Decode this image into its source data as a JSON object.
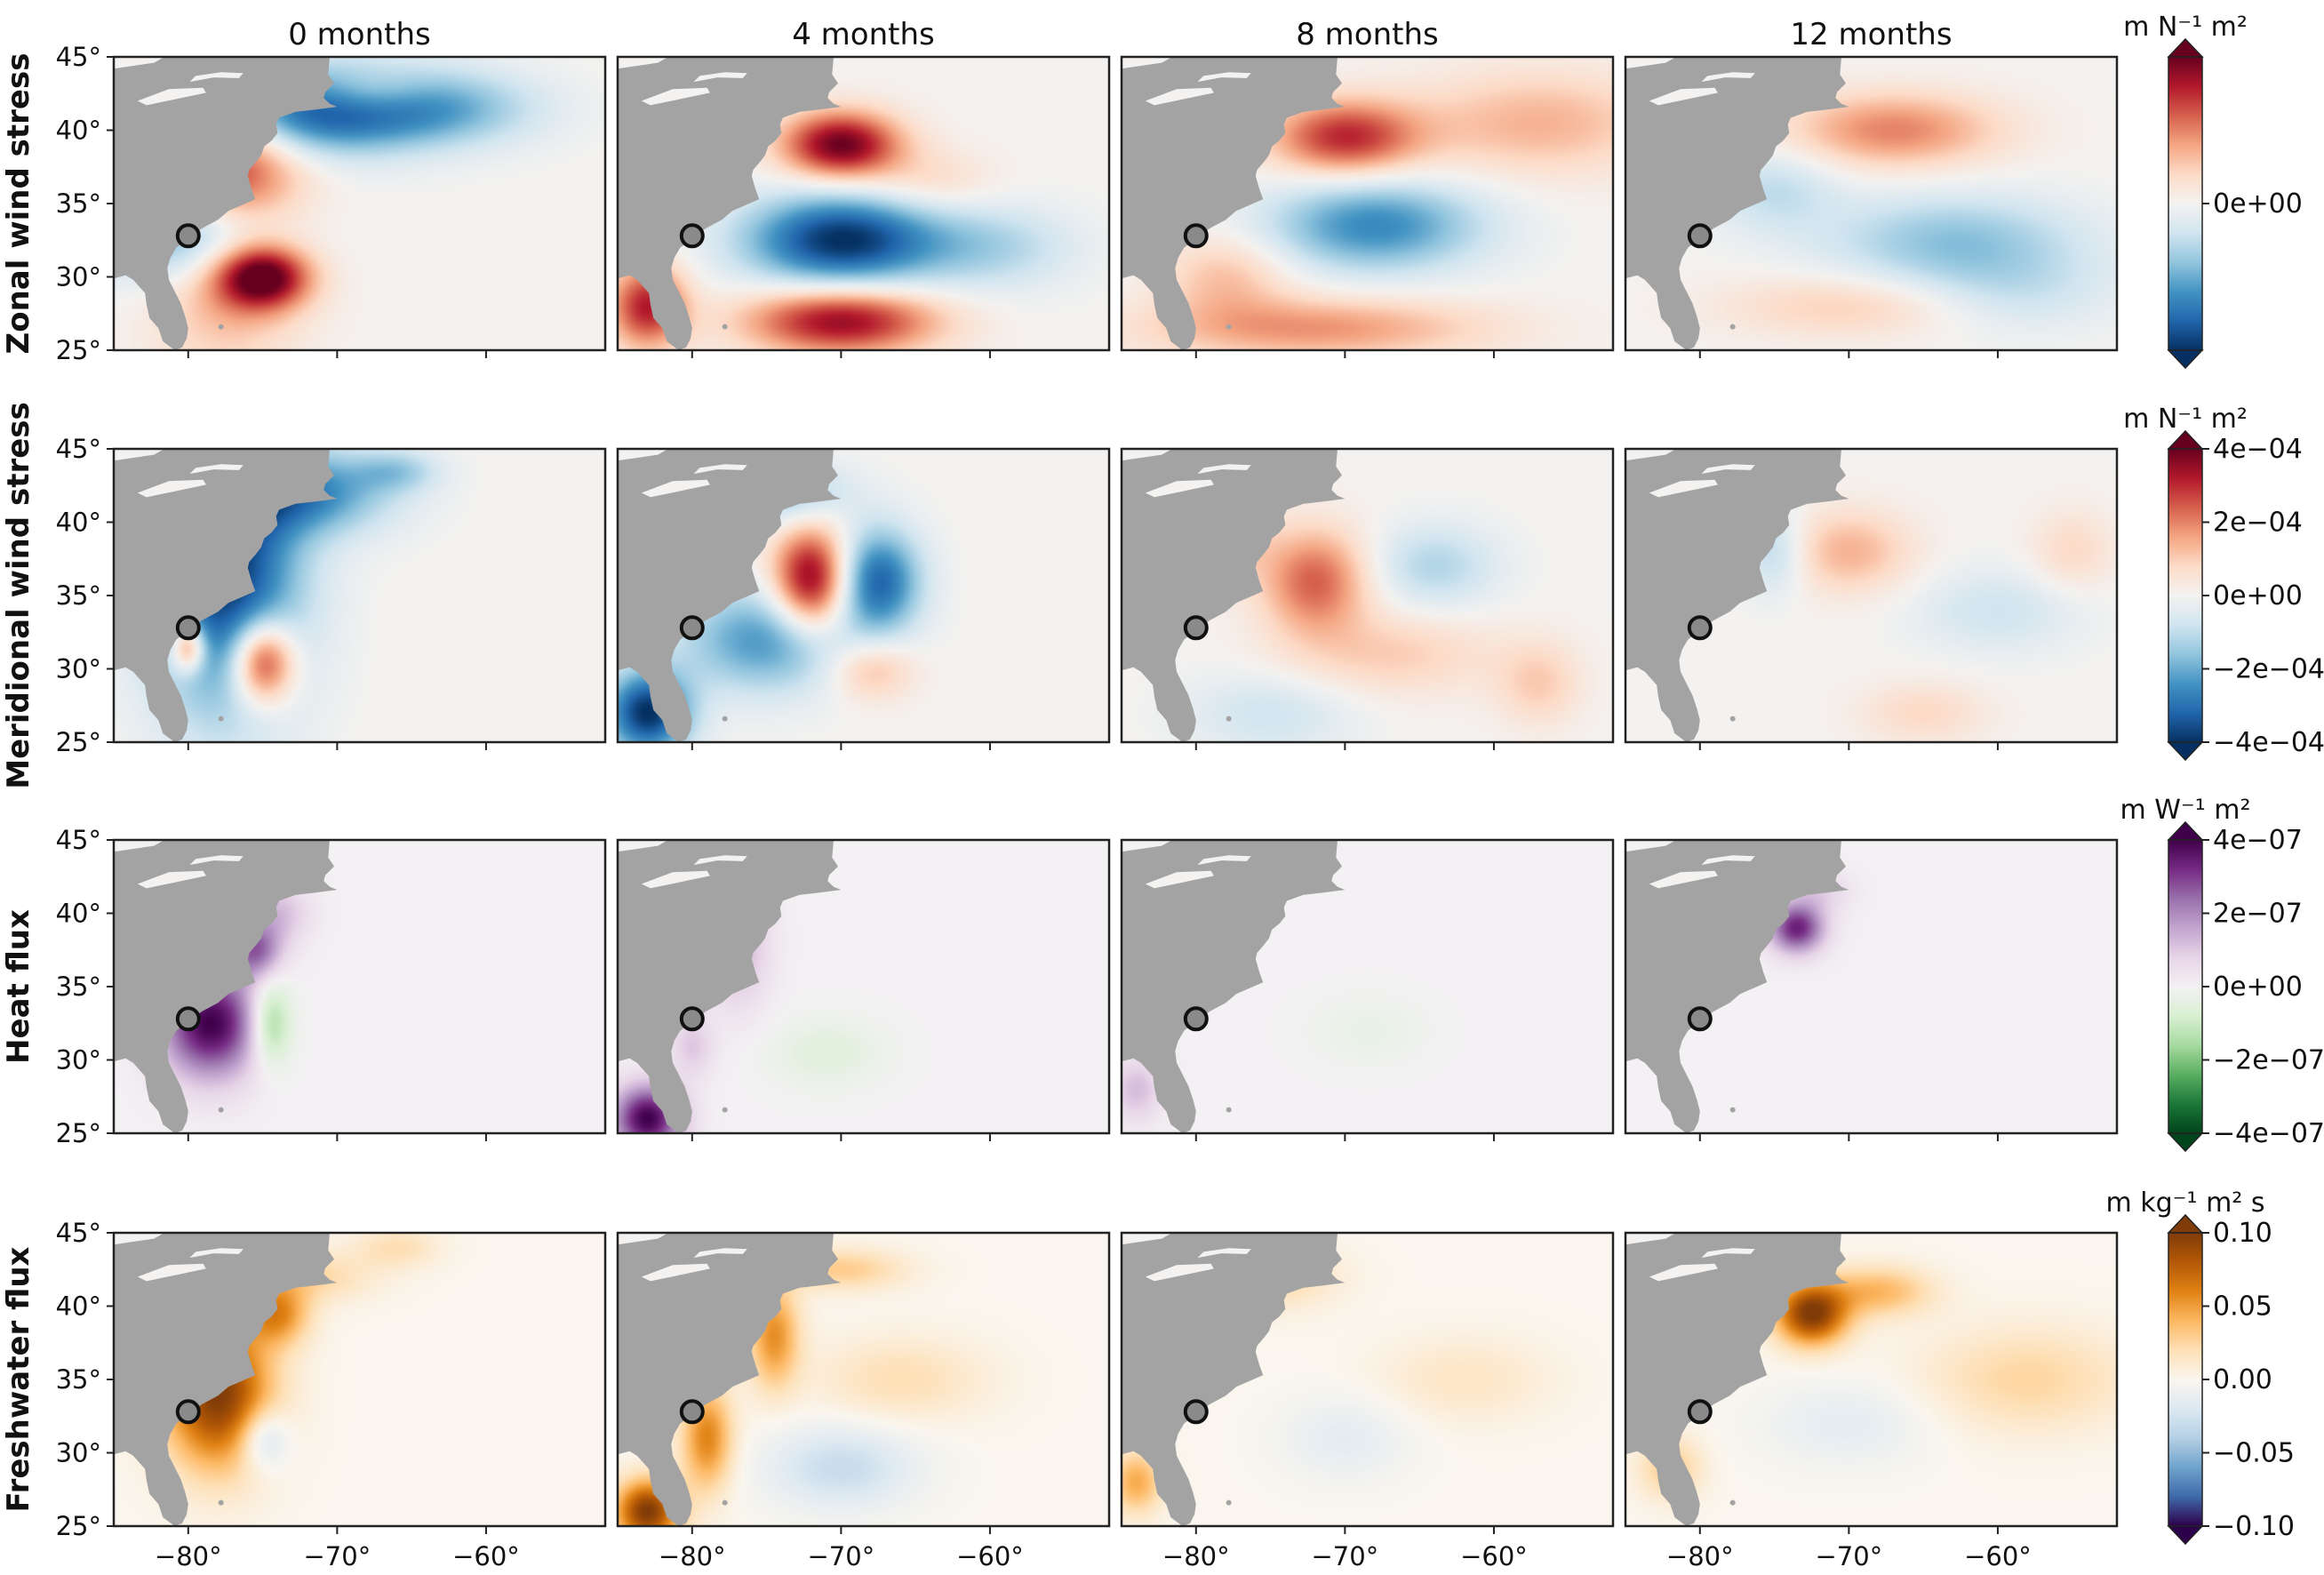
{
  "chart_data": {
    "type": "heatmap",
    "columns": [
      "0 months",
      "4 months",
      "8 months",
      "12 months"
    ],
    "x_ticks": [
      "−80°",
      "−70°",
      "−60°"
    ],
    "x_tick_values": [
      -80,
      -70,
      -60
    ],
    "y_ticks": [
      "45°",
      "40°",
      "35°",
      "30°",
      "25°"
    ],
    "y_tick_values": [
      45,
      40,
      35,
      30,
      25
    ],
    "lon_range": [
      -85,
      -52
    ],
    "lat_range": [
      25,
      45
    ],
    "marker": {
      "lon": -80,
      "lat": 32.8
    },
    "land_color": "#a3a3a3",
    "rows": [
      {
        "label": "Zonal wind stress",
        "unit": "m N⁻¹ m²",
        "colormap": "RdBu_r",
        "colorbar_ticks": [
          "0e+00"
        ],
        "colorbar_tick_values": [
          0.5
        ],
        "blobs": [
          [
            {
              "lon": -77.5,
              "lat": 36.5,
              "a": 1.0,
              "sx": 3.5,
              "sy": 6.5
            },
            {
              "lon": -74,
              "lat": 41.5,
              "a": -1.0,
              "sx": 6,
              "sy": 2.2
            },
            {
              "lon": -79,
              "lat": 33,
              "a": -1.0,
              "sx": 4,
              "sy": 2.5
            },
            {
              "lon": -75,
              "lat": 30,
              "a": 1.0,
              "sx": 2.2,
              "sy": 1.5
            },
            {
              "lon": -64,
              "lat": 41.5,
              "a": -0.5,
              "sx": 5,
              "sy": 1.8
            },
            {
              "lon": -68,
              "lat": 42.5,
              "a": 0.35,
              "sx": 3,
              "sy": 1.2
            }
          ],
          [
            {
              "lon": -70,
              "lat": 39,
              "a": 1.0,
              "sx": 2.8,
              "sy": 1.6
            },
            {
              "lon": -70,
              "lat": 32.5,
              "a": -1.0,
              "sx": 4.5,
              "sy": 2.2
            },
            {
              "lon": -70,
              "lat": 27,
              "a": 0.9,
              "sx": 4.5,
              "sy": 1.6
            },
            {
              "lon": -83,
              "lat": 28,
              "a": 0.8,
              "sx": 1.8,
              "sy": 2.0
            },
            {
              "lon": -64,
              "lat": 36.5,
              "a": 0.2,
              "sx": 3,
              "sy": 1.5
            },
            {
              "lon": -60,
              "lat": 32,
              "a": -0.3,
              "sx": 4,
              "sy": 2
            }
          ],
          [
            {
              "lon": -70,
              "lat": 39.5,
              "a": 0.75,
              "sx": 3.5,
              "sy": 1.8
            },
            {
              "lon": -68,
              "lat": 33.5,
              "a": -0.65,
              "sx": 5,
              "sy": 2.2
            },
            {
              "lon": -72,
              "lat": 26.5,
              "a": 0.45,
              "sx": 8,
              "sy": 1.5
            },
            {
              "lon": -57,
              "lat": 40.5,
              "a": 0.35,
              "sx": 6,
              "sy": 2.5
            },
            {
              "lon": -78,
              "lat": 30,
              "a": 0.3,
              "sx": 3,
              "sy": 2
            }
          ],
          [
            {
              "lon": -67,
              "lat": 40,
              "a": 0.5,
              "sx": 5,
              "sy": 1.8
            },
            {
              "lon": -63,
              "lat": 32.5,
              "a": -0.4,
              "sx": 6,
              "sy": 2.2
            },
            {
              "lon": -75,
              "lat": 36,
              "a": -0.25,
              "sx": 3,
              "sy": 2
            },
            {
              "lon": -70,
              "lat": 28,
              "a": 0.25,
              "sx": 6,
              "sy": 1.5
            },
            {
              "lon": -59,
              "lat": 29,
              "a": -0.2,
              "sx": 5,
              "sy": 2
            }
          ]
        ]
      },
      {
        "label": "Meridional wind stress",
        "unit": "m N⁻¹ m²",
        "colormap": "RdBu_r",
        "colorbar_ticks": [
          "4e−04",
          "2e−04",
          "0e+00",
          "−2e−04",
          "−4e−04"
        ],
        "colorbar_tick_values": [
          1.0,
          0.75,
          0.5,
          0.25,
          0.0
        ],
        "blobs": [
          [
            {
              "lon": -77.5,
              "lat": 36.5,
              "a": -1.0,
              "sx": 3.5,
              "sy": 6.5
            },
            {
              "lon": -75,
              "lat": 30.5,
              "a": 1.0,
              "sx": 1.5,
              "sy": 2.0
            },
            {
              "lon": -80,
              "lat": 31.5,
              "a": 0.8,
              "sx": 0.8,
              "sy": 1.2
            },
            {
              "lon": -72,
              "lat": 42,
              "a": -0.6,
              "sx": 4,
              "sy": 2
            },
            {
              "lon": -66,
              "lat": 43.5,
              "a": -0.3,
              "sx": 2,
              "sy": 1
            }
          ],
          [
            {
              "lon": -72,
              "lat": 36,
              "a": 1.0,
              "sx": 1.8,
              "sy": 2.5
            },
            {
              "lon": -67.5,
              "lat": 36,
              "a": -0.8,
              "sx": 2,
              "sy": 2.5
            },
            {
              "lon": -75,
              "lat": 32,
              "a": -0.6,
              "sx": 4,
              "sy": 2.5
            },
            {
              "lon": -83,
              "lat": 27,
              "a": -1.0,
              "sx": 2,
              "sy": 2
            },
            {
              "lon": -68,
              "lat": 30,
              "a": 0.35,
              "sx": 2,
              "sy": 1.5
            },
            {
              "lon": -74,
              "lat": 42,
              "a": -0.4,
              "sx": 3,
              "sy": 1.5
            }
          ],
          [
            {
              "lon": -72,
              "lat": 36,
              "a": 0.6,
              "sx": 2.5,
              "sy": 2.5
            },
            {
              "lon": -64,
              "lat": 37,
              "a": -0.3,
              "sx": 3,
              "sy": 2
            },
            {
              "lon": -67,
              "lat": 31,
              "a": 0.25,
              "sx": 5,
              "sy": 2
            },
            {
              "lon": -57,
              "lat": 29,
              "a": 0.25,
              "sx": 2,
              "sy": 2
            },
            {
              "lon": -75,
              "lat": 27,
              "a": -0.2,
              "sx": 4,
              "sy": 2
            },
            {
              "lon": -78,
              "lat": 39,
              "a": 0.3,
              "sx": 2,
              "sy": 2
            }
          ],
          [
            {
              "lon": -70,
              "lat": 38,
              "a": 0.35,
              "sx": 3,
              "sy": 2
            },
            {
              "lon": -75,
              "lat": 38,
              "a": -0.3,
              "sx": 1.5,
              "sy": 2
            },
            {
              "lon": -60,
              "lat": 34,
              "a": -0.2,
              "sx": 4,
              "sy": 2
            },
            {
              "lon": -55,
              "lat": 38,
              "a": 0.2,
              "sx": 2,
              "sy": 2
            },
            {
              "lon": -65,
              "lat": 27,
              "a": 0.2,
              "sx": 3,
              "sy": 1.5
            }
          ]
        ]
      },
      {
        "label": "Heat flux",
        "unit": "m W⁻¹ m²",
        "colormap": "PRGn_r",
        "colorbar_ticks": [
          "4e−07",
          "2e−07",
          "0e+00",
          "−2e−07",
          "−4e−07"
        ],
        "colorbar_tick_values": [
          1.0,
          0.75,
          0.5,
          0.25,
          0.0
        ],
        "blobs": [
          [
            {
              "lon": -78.5,
              "lat": 32.5,
              "a": 1.0,
              "sx": 2.3,
              "sy": 2.6
            },
            {
              "lon": -75.5,
              "lat": 37.5,
              "a": 0.6,
              "sx": 1.2,
              "sy": 1.3
            },
            {
              "lon": -74.5,
              "lat": 32.5,
              "a": -0.5,
              "sx": 1.0,
              "sy": 2.0
            },
            {
              "lon": -74,
              "lat": 40,
              "a": 0.3,
              "sx": 1.5,
              "sy": 1.5
            }
          ],
          [
            {
              "lon": -83,
              "lat": 26,
              "a": 1.0,
              "sx": 1.6,
              "sy": 1.6
            },
            {
              "lon": -77,
              "lat": 38,
              "a": 0.35,
              "sx": 1.5,
              "sy": 3
            },
            {
              "lon": -71,
              "lat": 30.5,
              "a": -0.15,
              "sx": 2.5,
              "sy": 1.5
            },
            {
              "lon": -80,
              "lat": 31,
              "a": 0.25,
              "sx": 1,
              "sy": 1.5
            }
          ],
          [
            {
              "lon": -84,
              "lat": 28,
              "a": 0.3,
              "sx": 1.2,
              "sy": 1.5
            },
            {
              "lon": -68.5,
              "lat": 32,
              "a": -0.08,
              "sx": 2.5,
              "sy": 1.5
            }
          ],
          [
            {
              "lon": -73.5,
              "lat": 39,
              "a": 0.85,
              "sx": 1.3,
              "sy": 1.2
            },
            {
              "lon": -72,
              "lat": 41.5,
              "a": 0.2,
              "sx": 1.5,
              "sy": 1
            }
          ]
        ]
      },
      {
        "label": "Freshwater flux",
        "unit": "m kg⁻¹ m² s",
        "colormap": "PuOr_r",
        "colorbar_ticks": [
          "0.10",
          "0.05",
          "0.00",
          "−0.05",
          "−0.10"
        ],
        "colorbar_tick_values": [
          1.0,
          0.75,
          0.5,
          0.25,
          0.0
        ],
        "blobs": [
          [
            {
              "lon": -78,
              "lat": 34,
              "a": 1.0,
              "sx": 2.5,
              "sy": 3.5
            },
            {
              "lon": -74,
              "lat": 39.5,
              "a": 0.55,
              "sx": 1.5,
              "sy": 1.5
            },
            {
              "lon": -75,
              "lat": 31,
              "a": -0.4,
              "sx": 1.2,
              "sy": 1.5
            },
            {
              "lon": -72,
              "lat": 42,
              "a": 0.25,
              "sx": 3,
              "sy": 1.2
            },
            {
              "lon": -66,
              "lat": 44,
              "a": 0.2,
              "sx": 2,
              "sy": 1
            }
          ],
          [
            {
              "lon": -83,
              "lat": 26,
              "a": 1.0,
              "sx": 1.5,
              "sy": 1.5
            },
            {
              "lon": -79,
              "lat": 31,
              "a": 0.6,
              "sx": 1.2,
              "sy": 2.5
            },
            {
              "lon": -74.5,
              "lat": 38,
              "a": 0.55,
              "sx": 1.2,
              "sy": 2.5
            },
            {
              "lon": -70,
              "lat": 29,
              "a": -0.3,
              "sx": 3.5,
              "sy": 2
            },
            {
              "lon": -66,
              "lat": 35,
              "a": 0.2,
              "sx": 4,
              "sy": 2
            },
            {
              "lon": -70,
              "lat": 42.5,
              "a": 0.3,
              "sx": 3,
              "sy": 1
            }
          ],
          [
            {
              "lon": -84,
              "lat": 28,
              "a": 0.45,
              "sx": 1.2,
              "sy": 1.5
            },
            {
              "lon": -70,
              "lat": 31,
              "a": -0.15,
              "sx": 3,
              "sy": 2
            },
            {
              "lon": -62,
              "lat": 35,
              "a": 0.15,
              "sx": 4,
              "sy": 2
            },
            {
              "lon": -75,
              "lat": 42,
              "a": 0.25,
              "sx": 3,
              "sy": 1.5
            }
          ],
          [
            {
              "lon": -72.5,
              "lat": 39.5,
              "a": 1.0,
              "sx": 1.7,
              "sy": 1.5
            },
            {
              "lon": -68,
              "lat": 41,
              "a": 0.4,
              "sx": 2.5,
              "sy": 1.2
            },
            {
              "lon": -58,
              "lat": 35,
              "a": 0.25,
              "sx": 5,
              "sy": 2.5
            },
            {
              "lon": -82,
              "lat": 29,
              "a": 0.3,
              "sx": 1.5,
              "sy": 1.5
            },
            {
              "lon": -70,
              "lat": 32,
              "a": -0.15,
              "sx": 4,
              "sy": 2
            }
          ]
        ]
      }
    ]
  }
}
